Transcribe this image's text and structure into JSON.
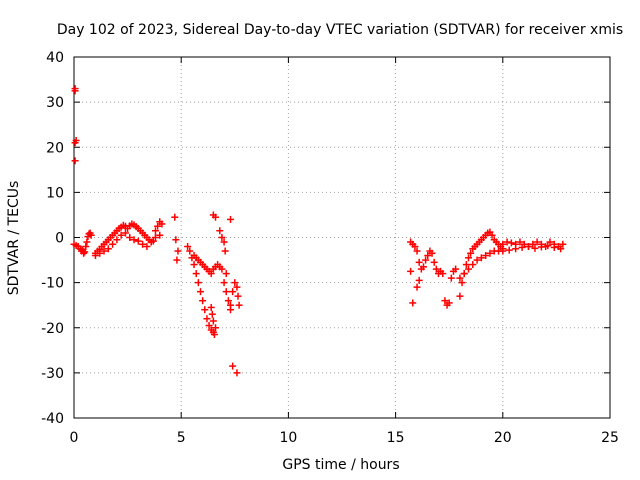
{
  "chart_data": {
    "type": "scatter",
    "title": "Day 102 of 2023, Sidereal Day-to-day VTEC variation (SDTVAR) for receiver xmis",
    "xlabel": "GPS time / hours",
    "ylabel": "SDTVAR / TECUs",
    "xlim": [
      0,
      25
    ],
    "ylim": [
      -40,
      40
    ],
    "xticks": [
      0,
      5,
      10,
      15,
      20,
      25
    ],
    "yticks": [
      -40,
      -30,
      -20,
      -10,
      0,
      10,
      20,
      30,
      40
    ],
    "grid": true,
    "marker": "+",
    "series_color": "#ff0000",
    "segments": [
      {
        "name": "early-high",
        "x": [
          0.05,
          0.05,
          0.05,
          0.1,
          0.05
        ],
        "y": [
          33,
          32.5,
          21,
          21.5,
          17
        ]
      },
      {
        "name": "arc-1",
        "x": [
          0.0,
          0.1,
          0.2,
          0.3,
          0.35,
          0.4,
          0.45,
          0.5,
          0.55,
          0.6,
          0.65,
          0.7,
          0.75,
          0.8
        ],
        "y": [
          -1.5,
          -1.8,
          -2.0,
          -2.5,
          -3.0,
          -2.8,
          -3.5,
          -3.2,
          -2.0,
          -1.0,
          0.2,
          0.8,
          1.0,
          0.5
        ]
      },
      {
        "name": "arc-2",
        "x": [
          1.0,
          1.1,
          1.2,
          1.3,
          1.4,
          1.5,
          1.6,
          1.7,
          1.8,
          1.9,
          2.0,
          2.1,
          2.2,
          2.3,
          2.4,
          2.5,
          2.6,
          2.7,
          2.8,
          2.9,
          3.0,
          3.1,
          3.2,
          3.3,
          3.4,
          3.5,
          3.6,
          3.7,
          3.8,
          3.9,
          4.0,
          4.1
        ],
        "y": [
          -3.5,
          -3.0,
          -2.6,
          -2.0,
          -1.5,
          -1.0,
          -0.5,
          0.0,
          0.5,
          1.0,
          1.5,
          2.0,
          2.3,
          2.7,
          2.5,
          2.0,
          2.6,
          3.0,
          2.8,
          2.4,
          2.0,
          1.5,
          1.0,
          0.5,
          0.0,
          -0.5,
          -1.0,
          -0.8,
          1.5,
          2.5,
          3.5,
          3.0
        ]
      },
      {
        "name": "arc-3",
        "x": [
          1.0,
          1.2,
          1.4,
          1.6,
          1.8,
          2.0,
          2.2,
          2.4,
          2.6,
          2.8,
          3.0,
          3.2,
          3.4,
          3.6,
          3.8,
          4.0
        ],
        "y": [
          -4.0,
          -3.5,
          -3.0,
          -2.5,
          -1.5,
          -0.5,
          0.5,
          1.0,
          0.0,
          -0.5,
          -0.8,
          -1.5,
          -2.0,
          -1.0,
          0.0,
          0.5
        ]
      },
      {
        "name": "isolated-5h",
        "x": [
          4.7,
          4.75,
          4.85,
          4.8
        ],
        "y": [
          4.5,
          -0.5,
          -3.0,
          -5.0
        ]
      },
      {
        "name": "descent",
        "x": [
          5.3,
          5.4,
          5.5,
          5.6,
          5.7,
          5.8,
          5.9,
          6.0,
          6.1,
          6.2,
          6.3,
          6.4,
          6.5,
          6.55,
          6.6,
          6.5,
          6.45,
          6.4
        ],
        "y": [
          -2.0,
          -3.0,
          -4.5,
          -6.0,
          -8.0,
          -10.0,
          -12.0,
          -14.0,
          -16.0,
          -18.0,
          -19.5,
          -20.5,
          -21.0,
          -21.5,
          -20.0,
          -18.5,
          -17.0,
          -15.5
        ]
      },
      {
        "name": "descent-2",
        "x": [
          5.6,
          5.7,
          5.8,
          5.9,
          6.0,
          6.1,
          6.2,
          6.3,
          6.4,
          6.5,
          6.6,
          6.7
        ],
        "y": [
          -4.0,
          -4.5,
          -5.0,
          -5.5,
          -6.0,
          -6.5,
          -7.0,
          -7.5,
          -8.0,
          -7.0,
          -6.5,
          -6.0
        ]
      },
      {
        "name": "bump-6-7",
        "x": [
          6.5,
          6.6,
          6.8,
          6.9,
          7.0,
          7.05,
          7.1,
          7.3
        ],
        "y": [
          5.0,
          4.5,
          1.5,
          0.0,
          -1.0,
          -3.0,
          -8.0,
          4.0
        ]
      },
      {
        "name": "drop-7",
        "x": [
          6.8,
          6.9,
          7.0,
          7.1,
          7.2,
          7.3,
          7.4,
          7.5,
          7.6,
          7.65,
          7.7
        ],
        "y": [
          -6.5,
          -7.0,
          -10.0,
          -12.0,
          -14.0,
          -15.0,
          -12.0,
          -10.0,
          -11.0,
          -13.0,
          -15.0
        ]
      },
      {
        "name": "low-outliers",
        "x": [
          7.4,
          7.6,
          7.3
        ],
        "y": [
          -28.5,
          -30.0,
          -16.0
        ]
      },
      {
        "name": "arc-16",
        "x": [
          15.7,
          15.8,
          15.9,
          16.0,
          16.1,
          16.2,
          16.3,
          16.4,
          16.5,
          16.6,
          16.7,
          16.8,
          16.9,
          17.0,
          17.1
        ],
        "y": [
          -1.0,
          -1.5,
          -2.0,
          -3.0,
          -5.5,
          -7.0,
          -6.5,
          -5.0,
          -4.0,
          -3.0,
          -3.5,
          -5.5,
          -7.0,
          -8.0,
          -7.5
        ]
      },
      {
        "name": "arc-16b",
        "x": [
          15.7,
          15.8,
          16.0,
          16.1
        ],
        "y": [
          -7.5,
          -14.5,
          -11.0,
          -9.5
        ]
      },
      {
        "name": "arc-17",
        "x": [
          17.2,
          17.3,
          17.4,
          17.5,
          17.6,
          17.7,
          17.8
        ],
        "y": [
          -8.0,
          -14.0,
          -15.0,
          -14.5,
          -9.0,
          -7.5,
          -7.0
        ]
      },
      {
        "name": "arc-18-20",
        "x": [
          18.0,
          18.1,
          18.2,
          18.3,
          18.4,
          18.5,
          18.6,
          18.7,
          18.8,
          18.9,
          19.0,
          19.1,
          19.2,
          19.3,
          19.4,
          19.5,
          19.6,
          19.7,
          19.8,
          19.9,
          20.0
        ],
        "y": [
          -13.0,
          -10.0,
          -8.0,
          -6.0,
          -4.5,
          -3.5,
          -2.5,
          -2.0,
          -1.5,
          -1.0,
          -0.5,
          0.0,
          0.5,
          1.0,
          1.2,
          0.5,
          -0.5,
          -1.0,
          -1.5,
          -2.0,
          -2.5
        ]
      },
      {
        "name": "arc-18-20b",
        "x": [
          18.0,
          18.2,
          18.4,
          18.6,
          18.8,
          19.0,
          19.2,
          19.4,
          19.6,
          19.8,
          20.0
        ],
        "y": [
          -9.0,
          -8.0,
          -7.0,
          -6.0,
          -5.0,
          -4.5,
          -4.0,
          -3.5,
          -3.0,
          -3.0,
          -2.5
        ]
      },
      {
        "name": "tail-20-23",
        "x": [
          20.0,
          20.2,
          20.4,
          20.6,
          20.8,
          21.0,
          21.2,
          21.4,
          21.6,
          21.8,
          22.0,
          22.2,
          22.4,
          22.6,
          22.8
        ],
        "y": [
          -1.5,
          -1.0,
          -1.2,
          -1.5,
          -1.0,
          -1.5,
          -2.0,
          -1.5,
          -1.0,
          -1.5,
          -2.0,
          -1.0,
          -1.5,
          -2.0,
          -1.5
        ]
      },
      {
        "name": "tail-20-23b",
        "x": [
          20.0,
          20.3,
          20.6,
          20.9,
          21.2,
          21.5,
          21.8,
          22.1,
          22.4,
          22.7
        ],
        "y": [
          -3.0,
          -2.8,
          -2.5,
          -2.2,
          -2.0,
          -2.4,
          -2.1,
          -1.8,
          -2.2,
          -2.5
        ]
      }
    ]
  }
}
